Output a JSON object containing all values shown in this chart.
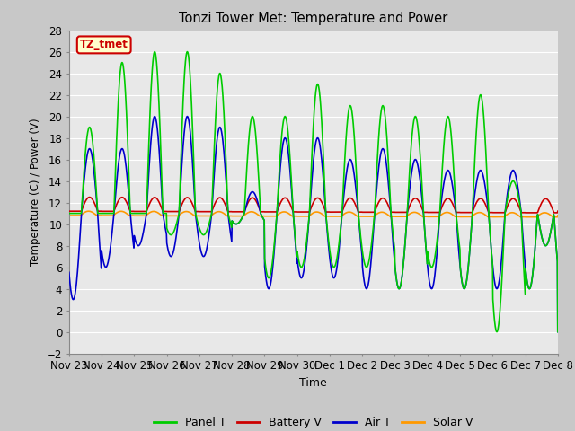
{
  "title": "Tonzi Tower Met: Temperature and Power",
  "xlabel": "Time",
  "ylabel": "Temperature (C) / Power (V)",
  "ylim": [
    -2,
    28
  ],
  "yticks": [
    -2,
    0,
    2,
    4,
    6,
    8,
    10,
    12,
    14,
    16,
    18,
    20,
    22,
    24,
    26,
    28
  ],
  "fig_bg_color": "#c8c8c8",
  "plot_bg_color": "#e8e8e8",
  "annotation_text": "TZ_tmet",
  "annotation_bg": "#ffffcc",
  "annotation_border": "#cc0000",
  "annotation_text_color": "#cc0000",
  "xtick_labels": [
    "Nov 23",
    "Nov 24",
    "Nov 25",
    "Nov 26",
    "Nov 27",
    "Nov 28",
    "Nov 29",
    "Nov 30",
    "Dec 1",
    "Dec 2",
    "Dec 3",
    "Dec 4",
    "Dec 5",
    "Dec 6",
    "Dec 7",
    "Dec 8"
  ],
  "legend_labels": [
    "Panel T",
    "Battery V",
    "Air T",
    "Solar V"
  ],
  "legend_colors": [
    "#00cc00",
    "#cc0000",
    "#0000cc",
    "#ff9900"
  ],
  "line_colors": {
    "panel_t": "#00cc00",
    "battery_v": "#cc0000",
    "air_t": "#0000cc",
    "solar_v": "#ff9900"
  },
  "n_days": 15,
  "panel_peaks": [
    19,
    25,
    26,
    26,
    24,
    20,
    20,
    23,
    21,
    21,
    20,
    20,
    22,
    14,
    8
  ],
  "panel_troughs": [
    11,
    11,
    11,
    9,
    9,
    10,
    5,
    6,
    6,
    6,
    4,
    6,
    4,
    0,
    4
  ],
  "air_peaks": [
    17,
    17,
    20,
    20,
    19,
    13,
    18,
    18,
    16,
    17,
    16,
    15,
    15,
    15,
    8
  ],
  "air_troughs": [
    3,
    6,
    8,
    7,
    7,
    10,
    4,
    5,
    5,
    4,
    4,
    4,
    4,
    4,
    4
  ],
  "battery_base": 11.2,
  "battery_slope": 0.01,
  "battery_spike": 1.3,
  "solar_base": 10.8,
  "solar_range": 0.4,
  "solar_min": 10.3,
  "solar_max": 11.2
}
